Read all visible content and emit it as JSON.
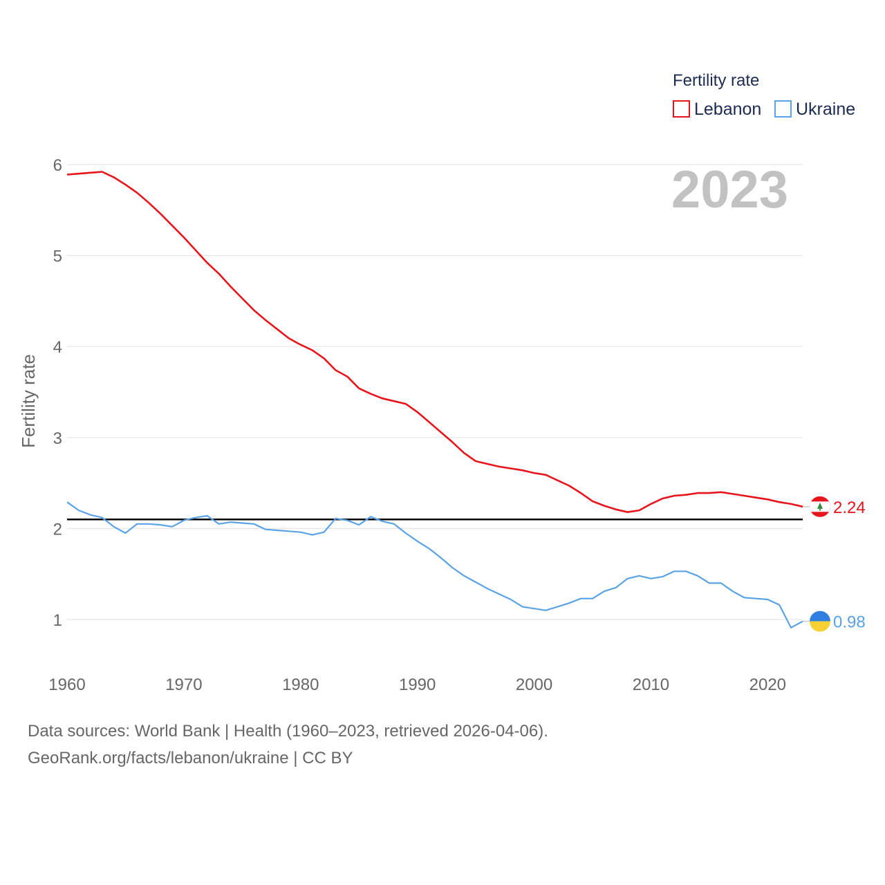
{
  "chart_data": {
    "type": "line",
    "ylabel": "Fertility rate",
    "xlabel": "",
    "xlim": [
      1960,
      2023
    ],
    "ylim": [
      0.5,
      6.5
    ],
    "x_ticks": [
      1960,
      1970,
      1980,
      1990,
      2000,
      2010,
      2020
    ],
    "y_ticks": [
      1,
      2,
      3,
      4,
      5,
      6
    ],
    "year_label": "2023",
    "legend": {
      "title": "Fertility rate",
      "position": "top-right"
    },
    "reference_line": {
      "value": 2.1,
      "color": "#000000"
    },
    "x": [
      1960,
      1961,
      1962,
      1963,
      1964,
      1965,
      1966,
      1967,
      1968,
      1969,
      1970,
      1971,
      1972,
      1973,
      1974,
      1975,
      1976,
      1977,
      1978,
      1979,
      1980,
      1981,
      1982,
      1983,
      1984,
      1985,
      1986,
      1987,
      1988,
      1989,
      1990,
      1991,
      1992,
      1993,
      1994,
      1995,
      1996,
      1997,
      1998,
      1999,
      2000,
      2001,
      2002,
      2003,
      2004,
      2005,
      2006,
      2007,
      2008,
      2009,
      2010,
      2011,
      2012,
      2013,
      2014,
      2015,
      2016,
      2017,
      2018,
      2019,
      2020,
      2021,
      2022,
      2023
    ],
    "series": [
      {
        "name": "Lebanon",
        "color": "#e8141c",
        "end_label": "2.24",
        "flag": "lebanon-flag",
        "values": [
          5.89,
          5.9,
          5.91,
          5.92,
          5.86,
          5.78,
          5.69,
          5.58,
          5.46,
          5.33,
          5.2,
          5.06,
          4.92,
          4.8,
          4.66,
          4.53,
          4.4,
          4.29,
          4.19,
          4.09,
          4.02,
          3.96,
          3.87,
          3.74,
          3.67,
          3.54,
          3.48,
          3.43,
          3.4,
          3.37,
          3.28,
          3.17,
          3.06,
          2.95,
          2.83,
          2.74,
          2.71,
          2.68,
          2.66,
          2.64,
          2.61,
          2.59,
          2.53,
          2.47,
          2.39,
          2.3,
          2.25,
          2.21,
          2.18,
          2.2,
          2.27,
          2.33,
          2.36,
          2.37,
          2.39,
          2.39,
          2.4,
          2.38,
          2.36,
          2.34,
          2.32,
          2.29,
          2.27,
          2.24
        ]
      },
      {
        "name": "Ukraine",
        "color": "#5aa2e6",
        "end_label": "0.98",
        "flag": "ukraine-flag",
        "values": [
          2.29,
          2.2,
          2.15,
          2.12,
          2.02,
          1.95,
          2.05,
          2.05,
          2.04,
          2.02,
          2.09,
          2.12,
          2.14,
          2.05,
          2.07,
          2.06,
          2.05,
          1.99,
          1.98,
          1.97,
          1.96,
          1.93,
          1.96,
          2.11,
          2.09,
          2.04,
          2.13,
          2.08,
          2.05,
          1.95,
          1.86,
          1.78,
          1.68,
          1.57,
          1.48,
          1.41,
          1.34,
          1.28,
          1.22,
          1.14,
          1.12,
          1.1,
          1.14,
          1.18,
          1.23,
          1.23,
          1.31,
          1.35,
          1.45,
          1.48,
          1.45,
          1.47,
          1.53,
          1.53,
          1.48,
          1.4,
          1.4,
          1.31,
          1.24,
          1.23,
          1.22,
          1.16,
          0.91,
          0.98
        ]
      }
    ]
  },
  "footer": {
    "sources": "Data sources: World Bank | Health (1960–2023, retrieved 2026-04-06).",
    "link": "GeoRank.org/facts/lebanon/ukraine | CC BY"
  }
}
